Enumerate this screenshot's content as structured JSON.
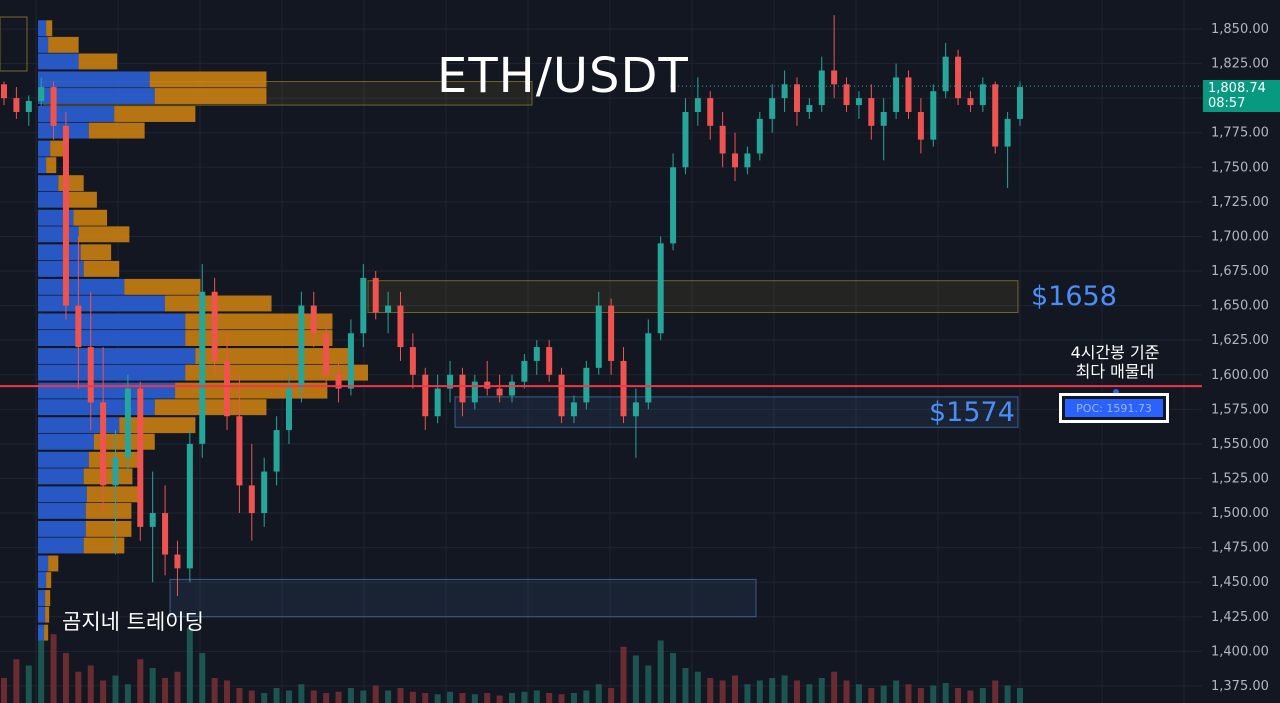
{
  "chart_data": {
    "type": "candlestick",
    "title": "ETH/USDT",
    "y_axis": {
      "ticks": [
        "1,850.00",
        "1,825.00",
        "1,800.00",
        "1,775.00",
        "1,750.00",
        "1,725.00",
        "1,700.00",
        "1,675.00",
        "1,650.00",
        "1,625.00",
        "1,600.00",
        "1,575.00",
        "1,550.00",
        "1,525.00",
        "1,500.00",
        "1,475.00",
        "1,450.00",
        "1,425.00",
        "1,400.00",
        "1,375.00"
      ],
      "ylim": [
        1368,
        1868
      ],
      "side": "right"
    },
    "grid": true,
    "candles": [
      [
        1810,
        1812,
        1795,
        1800
      ],
      [
        1800,
        1808,
        1785,
        1790
      ],
      [
        1790,
        1802,
        1780,
        1798
      ],
      [
        1798,
        1815,
        1794,
        1808
      ],
      [
        1808,
        1812,
        1770,
        1780
      ],
      [
        1780,
        1790,
        1640,
        1650
      ],
      [
        1650,
        1700,
        1590,
        1620
      ],
      [
        1620,
        1660,
        1560,
        1580
      ],
      [
        1580,
        1620,
        1500,
        1520
      ],
      [
        1520,
        1560,
        1470,
        1540
      ],
      [
        1540,
        1600,
        1530,
        1590
      ],
      [
        1590,
        1595,
        1480,
        1490
      ],
      [
        1490,
        1530,
        1450,
        1500
      ],
      [
        1500,
        1520,
        1455,
        1470
      ],
      [
        1470,
        1480,
        1440,
        1460
      ],
      [
        1460,
        1560,
        1450,
        1550
      ],
      [
        1550,
        1680,
        1540,
        1660
      ],
      [
        1660,
        1670,
        1600,
        1610
      ],
      [
        1610,
        1630,
        1560,
        1570
      ],
      [
        1570,
        1600,
        1500,
        1520
      ],
      [
        1520,
        1550,
        1480,
        1500
      ],
      [
        1500,
        1540,
        1490,
        1530
      ],
      [
        1530,
        1570,
        1520,
        1560
      ],
      [
        1560,
        1600,
        1550,
        1590
      ],
      [
        1590,
        1660,
        1580,
        1650
      ],
      [
        1650,
        1660,
        1620,
        1630
      ],
      [
        1630,
        1640,
        1590,
        1600
      ],
      [
        1600,
        1610,
        1580,
        1590
      ],
      [
        1590,
        1640,
        1585,
        1630
      ],
      [
        1630,
        1680,
        1620,
        1670
      ],
      [
        1670,
        1675,
        1640,
        1645
      ],
      [
        1645,
        1660,
        1630,
        1650
      ],
      [
        1650,
        1660,
        1610,
        1620
      ],
      [
        1620,
        1630,
        1590,
        1600
      ],
      [
        1600,
        1605,
        1560,
        1570
      ],
      [
        1570,
        1600,
        1565,
        1590
      ],
      [
        1590,
        1610,
        1580,
        1600
      ],
      [
        1600,
        1605,
        1570,
        1580
      ],
      [
        1580,
        1600,
        1575,
        1595
      ],
      [
        1595,
        1610,
        1585,
        1590
      ],
      [
        1590,
        1600,
        1580,
        1585
      ],
      [
        1585,
        1600,
        1580,
        1595
      ],
      [
        1595,
        1615,
        1590,
        1610
      ],
      [
        1610,
        1625,
        1600,
        1620
      ],
      [
        1620,
        1625,
        1595,
        1600
      ],
      [
        1600,
        1605,
        1565,
        1570
      ],
      [
        1570,
        1585,
        1565,
        1580
      ],
      [
        1580,
        1610,
        1575,
        1605
      ],
      [
        1605,
        1660,
        1600,
        1650
      ],
      [
        1650,
        1655,
        1600,
        1610
      ],
      [
        1610,
        1620,
        1565,
        1570
      ],
      [
        1570,
        1590,
        1540,
        1580
      ],
      [
        1580,
        1640,
        1575,
        1630
      ],
      [
        1630,
        1700,
        1625,
        1695
      ],
      [
        1695,
        1760,
        1690,
        1750
      ],
      [
        1750,
        1800,
        1745,
        1790
      ],
      [
        1790,
        1815,
        1780,
        1800
      ],
      [
        1800,
        1805,
        1770,
        1780
      ],
      [
        1780,
        1790,
        1750,
        1760
      ],
      [
        1760,
        1775,
        1740,
        1750
      ],
      [
        1750,
        1765,
        1745,
        1760
      ],
      [
        1760,
        1790,
        1755,
        1785
      ],
      [
        1785,
        1810,
        1775,
        1800
      ],
      [
        1800,
        1820,
        1790,
        1810
      ],
      [
        1810,
        1815,
        1780,
        1790
      ],
      [
        1790,
        1800,
        1785,
        1795
      ],
      [
        1795,
        1830,
        1790,
        1820
      ],
      [
        1820,
        1860,
        1800,
        1810
      ],
      [
        1810,
        1815,
        1790,
        1795
      ],
      [
        1795,
        1805,
        1785,
        1800
      ],
      [
        1800,
        1810,
        1770,
        1780
      ],
      [
        1780,
        1800,
        1755,
        1790
      ],
      [
        1790,
        1825,
        1785,
        1815
      ],
      [
        1815,
        1820,
        1785,
        1790
      ],
      [
        1790,
        1800,
        1760,
        1770
      ],
      [
        1770,
        1810,
        1765,
        1805
      ],
      [
        1805,
        1840,
        1800,
        1830
      ],
      [
        1830,
        1835,
        1795,
        1800
      ],
      [
        1800,
        1805,
        1790,
        1795
      ],
      [
        1795,
        1815,
        1790,
        1810
      ],
      [
        1810,
        1812,
        1760,
        1765
      ],
      [
        1765,
        1790,
        1735,
        1785
      ],
      [
        1785,
        1812,
        1780,
        1808
      ]
    ],
    "volume_profile": [
      {
        "price": 1850,
        "buy": 8,
        "sell": 6
      },
      {
        "price": 1838,
        "buy": 10,
        "sell": 30
      },
      {
        "price": 1826,
        "buy": 40,
        "sell": 38
      },
      {
        "price": 1813,
        "buy": 110,
        "sell": 115
      },
      {
        "price": 1801,
        "buy": 115,
        "sell": 110
      },
      {
        "price": 1788,
        "buy": 75,
        "sell": 80
      },
      {
        "price": 1776,
        "buy": 50,
        "sell": 55
      },
      {
        "price": 1763,
        "buy": 12,
        "sell": 15
      },
      {
        "price": 1751,
        "buy": 8,
        "sell": 10
      },
      {
        "price": 1738,
        "buy": 20,
        "sell": 25
      },
      {
        "price": 1726,
        "buy": 30,
        "sell": 28
      },
      {
        "price": 1713,
        "buy": 35,
        "sell": 33
      },
      {
        "price": 1701,
        "buy": 40,
        "sell": 50
      },
      {
        "price": 1688,
        "buy": 42,
        "sell": 30
      },
      {
        "price": 1676,
        "buy": 45,
        "sell": 35
      },
      {
        "price": 1663,
        "buy": 85,
        "sell": 75
      },
      {
        "price": 1651,
        "buy": 125,
        "sell": 105
      },
      {
        "price": 1638,
        "buy": 145,
        "sell": 145
      },
      {
        "price": 1626,
        "buy": 145,
        "sell": 145
      },
      {
        "price": 1613,
        "buy": 155,
        "sell": 155
      },
      {
        "price": 1601,
        "buy": 145,
        "sell": 180
      },
      {
        "price": 1588,
        "buy": 135,
        "sell": 150
      },
      {
        "price": 1576,
        "buy": 115,
        "sell": 110
      },
      {
        "price": 1563,
        "buy": 80,
        "sell": 75
      },
      {
        "price": 1551,
        "buy": 55,
        "sell": 60
      },
      {
        "price": 1538,
        "buy": 50,
        "sell": 53
      },
      {
        "price": 1526,
        "buy": 45,
        "sell": 48
      },
      {
        "price": 1513,
        "buy": 48,
        "sell": 50
      },
      {
        "price": 1501,
        "buy": 47,
        "sell": 45
      },
      {
        "price": 1488,
        "buy": 47,
        "sell": 45
      },
      {
        "price": 1476,
        "buy": 45,
        "sell": 40
      },
      {
        "price": 1463,
        "buy": 10,
        "sell": 10
      },
      {
        "price": 1451,
        "buy": 8,
        "sell": 5
      },
      {
        "price": 1438,
        "buy": 7,
        "sell": 5
      },
      {
        "price": 1426,
        "buy": 7,
        "sell": 4
      },
      {
        "price": 1413,
        "buy": 6,
        "sell": 4
      }
    ],
    "zones": [
      {
        "top": 1812,
        "bottom": 1795,
        "color": "#b8a030"
      },
      {
        "top": 1668,
        "bottom": 1645,
        "color": "#b8a030"
      },
      {
        "top": 1584,
        "bottom": 1562,
        "color": "#5b8fd8"
      },
      {
        "top": 1452,
        "bottom": 1425,
        "color": "#5b8fd8"
      }
    ],
    "poc_price": 1591.73,
    "last_price": 1808.74,
    "volumes": [
      20,
      35,
      30,
      60,
      55,
      40,
      25,
      30,
      18,
      22,
      15,
      35,
      28,
      20,
      25,
      60,
      40,
      20,
      18,
      12,
      10,
      8,
      12,
      10,
      15,
      10,
      8,
      9,
      12,
      10,
      14,
      10,
      12,
      9,
      8,
      7,
      9,
      8,
      7,
      8,
      6,
      8,
      9,
      10,
      8,
      7,
      8,
      10,
      15,
      12,
      45,
      38,
      30,
      50,
      40,
      28,
      25,
      20,
      18,
      22,
      15,
      18,
      20,
      22,
      18,
      15,
      20,
      25,
      18,
      15,
      12,
      14,
      18,
      15,
      12,
      14,
      16,
      12,
      10,
      12,
      18,
      14,
      12
    ]
  },
  "labels": {
    "title": "ETH/USDT",
    "level_high": "$1658",
    "level_low": "$1574",
    "poc_note_line1": "4시간봉 기준",
    "poc_note_line2": "최다 매물대",
    "poc_label": "POC: 1591.73",
    "watermark": "곰지네 트레이딩",
    "last_price": "1,808.74",
    "countdown": "08:57"
  },
  "colors": {
    "background": "#131722",
    "up": "#26a69a",
    "down": "#ef5350",
    "profile_buy": "#2a5fd6",
    "profile_sell": "#d4850f",
    "poc_line": "#f23645",
    "axis_text": "#b2b5be",
    "grid": "#1f2433"
  }
}
